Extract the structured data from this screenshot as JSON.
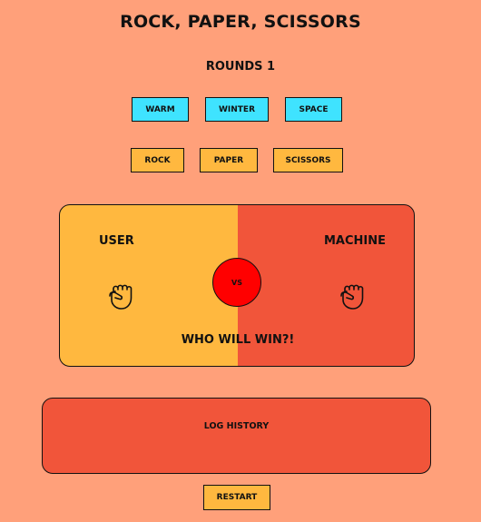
{
  "title": "Rock, Paper, Scissors",
  "rounds": "Rounds 1",
  "themes": {
    "warm": "Warm",
    "winter": "Winter",
    "space": "Space"
  },
  "moves": {
    "rock": "Rock",
    "paper": "Paper",
    "scissors": "Scissors"
  },
  "arena": {
    "user_label": "User",
    "machine_label": "Machine",
    "user_choice_icon": "fist-icon",
    "machine_choice_icon": "fist-icon",
    "vs": "VS",
    "status": "Who will win?!"
  },
  "log": {
    "title": "Log history"
  },
  "restart_label": "Restart",
  "colors": {
    "background": "#ffa07a",
    "theme_button": "#3fe3ff",
    "move_button": "#ffb83f",
    "user_side": "#ffb83f",
    "machine_side": "#f1553a",
    "vs_circle": "#ff0000"
  }
}
